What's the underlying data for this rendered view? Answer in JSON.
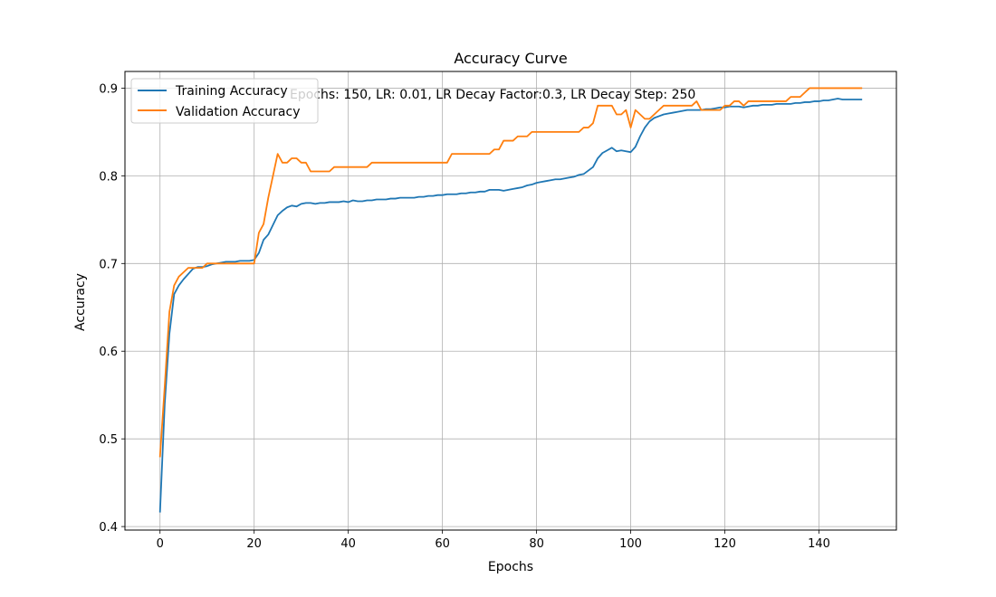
{
  "chart_data": {
    "type": "line",
    "title": "Accuracy Curve",
    "annotation": "Epochs: 150, LR: 0.01, LR Decay Factor:0.3, LR Decay Step: 250",
    "xlabel": "Epochs",
    "ylabel": "Accuracy",
    "xlim": [
      -7.45,
      156.45
    ],
    "ylim": [
      0.396,
      0.919
    ],
    "xticks": [
      0,
      20,
      40,
      60,
      80,
      100,
      120,
      140
    ],
    "xtick_labels": [
      "0",
      "20",
      "40",
      "60",
      "80",
      "100",
      "120",
      "140"
    ],
    "yticks": [
      0.4,
      0.5,
      0.6,
      0.7,
      0.8,
      0.9
    ],
    "ytick_labels": [
      "0.4",
      "0.5",
      "0.6",
      "0.7",
      "0.8",
      "0.9"
    ],
    "grid": true,
    "legend_position": "upper-left",
    "series": [
      {
        "name": "Training Accuracy",
        "color": "#1f77b4",
        "x": [
          0,
          1,
          2,
          3,
          4,
          5,
          6,
          7,
          8,
          9,
          10,
          11,
          12,
          13,
          14,
          15,
          16,
          17,
          18,
          19,
          20,
          21,
          22,
          23,
          24,
          25,
          26,
          27,
          28,
          29,
          30,
          31,
          32,
          33,
          34,
          35,
          36,
          37,
          38,
          39,
          40,
          41,
          42,
          43,
          44,
          45,
          46,
          47,
          48,
          49,
          50,
          51,
          52,
          53,
          54,
          55,
          56,
          57,
          58,
          59,
          60,
          61,
          62,
          63,
          64,
          65,
          66,
          67,
          68,
          69,
          70,
          71,
          72,
          73,
          74,
          75,
          76,
          77,
          78,
          79,
          80,
          81,
          82,
          83,
          84,
          85,
          86,
          87,
          88,
          89,
          90,
          91,
          92,
          93,
          94,
          95,
          96,
          97,
          98,
          99,
          100,
          101,
          102,
          103,
          104,
          105,
          106,
          107,
          108,
          109,
          110,
          111,
          112,
          113,
          114,
          115,
          116,
          117,
          118,
          119,
          120,
          121,
          122,
          123,
          124,
          125,
          126,
          127,
          128,
          129,
          130,
          131,
          132,
          133,
          134,
          135,
          136,
          137,
          138,
          139,
          140,
          141,
          142,
          143,
          144,
          145,
          146,
          147,
          148,
          149
        ],
        "y": [
          0.417,
          0.54,
          0.62,
          0.665,
          0.675,
          0.682,
          0.688,
          0.694,
          0.696,
          0.696,
          0.697,
          0.699,
          0.7,
          0.701,
          0.702,
          0.702,
          0.702,
          0.703,
          0.703,
          0.703,
          0.704,
          0.712,
          0.727,
          0.733,
          0.744,
          0.755,
          0.76,
          0.764,
          0.766,
          0.765,
          0.768,
          0.769,
          0.769,
          0.768,
          0.769,
          0.769,
          0.77,
          0.77,
          0.77,
          0.771,
          0.77,
          0.772,
          0.771,
          0.771,
          0.772,
          0.772,
          0.773,
          0.773,
          0.773,
          0.774,
          0.774,
          0.775,
          0.775,
          0.775,
          0.775,
          0.776,
          0.776,
          0.777,
          0.777,
          0.778,
          0.778,
          0.779,
          0.779,
          0.779,
          0.78,
          0.78,
          0.781,
          0.781,
          0.782,
          0.782,
          0.784,
          0.784,
          0.784,
          0.783,
          0.784,
          0.785,
          0.786,
          0.787,
          0.789,
          0.79,
          0.792,
          0.793,
          0.794,
          0.795,
          0.796,
          0.796,
          0.797,
          0.798,
          0.799,
          0.801,
          0.802,
          0.806,
          0.81,
          0.82,
          0.826,
          0.829,
          0.832,
          0.828,
          0.829,
          0.828,
          0.827,
          0.833,
          0.845,
          0.855,
          0.862,
          0.866,
          0.868,
          0.87,
          0.871,
          0.872,
          0.873,
          0.874,
          0.875,
          0.875,
          0.875,
          0.875,
          0.876,
          0.876,
          0.877,
          0.878,
          0.878,
          0.879,
          0.879,
          0.879,
          0.878,
          0.879,
          0.88,
          0.88,
          0.881,
          0.881,
          0.881,
          0.882,
          0.882,
          0.882,
          0.882,
          0.883,
          0.883,
          0.884,
          0.884,
          0.885,
          0.885,
          0.886,
          0.886,
          0.887,
          0.888,
          0.887,
          0.887,
          0.887,
          0.887,
          0.887
        ]
      },
      {
        "name": "Validation Accuracy",
        "color": "#ff7f0e",
        "x": [
          0,
          1,
          2,
          3,
          4,
          5,
          6,
          7,
          8,
          9,
          10,
          11,
          12,
          13,
          14,
          15,
          16,
          17,
          18,
          19,
          20,
          21,
          22,
          23,
          24,
          25,
          26,
          27,
          28,
          29,
          30,
          31,
          32,
          33,
          34,
          35,
          36,
          37,
          38,
          39,
          40,
          41,
          42,
          43,
          44,
          45,
          46,
          47,
          48,
          49,
          50,
          51,
          52,
          53,
          54,
          55,
          56,
          57,
          58,
          59,
          60,
          61,
          62,
          63,
          64,
          65,
          66,
          67,
          68,
          69,
          70,
          71,
          72,
          73,
          74,
          75,
          76,
          77,
          78,
          79,
          80,
          81,
          82,
          83,
          84,
          85,
          86,
          87,
          88,
          89,
          90,
          91,
          92,
          93,
          94,
          95,
          96,
          97,
          98,
          99,
          100,
          101,
          102,
          103,
          104,
          105,
          106,
          107,
          108,
          109,
          110,
          111,
          112,
          113,
          114,
          115,
          116,
          117,
          118,
          119,
          120,
          121,
          122,
          123,
          124,
          125,
          126,
          127,
          128,
          129,
          130,
          131,
          132,
          133,
          134,
          135,
          136,
          137,
          138,
          139,
          140,
          141,
          142,
          143,
          144,
          145,
          146,
          147,
          148,
          149
        ],
        "y": [
          0.48,
          0.56,
          0.645,
          0.675,
          0.685,
          0.69,
          0.695,
          0.695,
          0.695,
          0.695,
          0.7,
          0.7,
          0.7,
          0.7,
          0.7,
          0.7,
          0.7,
          0.7,
          0.7,
          0.7,
          0.7,
          0.735,
          0.745,
          0.775,
          0.8,
          0.825,
          0.815,
          0.815,
          0.82,
          0.82,
          0.815,
          0.815,
          0.805,
          0.805,
          0.805,
          0.805,
          0.805,
          0.81,
          0.81,
          0.81,
          0.81,
          0.81,
          0.81,
          0.81,
          0.81,
          0.815,
          0.815,
          0.815,
          0.815,
          0.815,
          0.815,
          0.815,
          0.815,
          0.815,
          0.815,
          0.815,
          0.815,
          0.815,
          0.815,
          0.815,
          0.815,
          0.815,
          0.825,
          0.825,
          0.825,
          0.825,
          0.825,
          0.825,
          0.825,
          0.825,
          0.825,
          0.83,
          0.83,
          0.84,
          0.84,
          0.84,
          0.845,
          0.845,
          0.845,
          0.85,
          0.85,
          0.85,
          0.85,
          0.85,
          0.85,
          0.85,
          0.85,
          0.85,
          0.85,
          0.85,
          0.855,
          0.855,
          0.86,
          0.88,
          0.88,
          0.88,
          0.88,
          0.87,
          0.87,
          0.875,
          0.855,
          0.875,
          0.87,
          0.865,
          0.865,
          0.87,
          0.875,
          0.88,
          0.88,
          0.88,
          0.88,
          0.88,
          0.88,
          0.88,
          0.885,
          0.875,
          0.875,
          0.875,
          0.875,
          0.875,
          0.88,
          0.88,
          0.885,
          0.885,
          0.88,
          0.885,
          0.885,
          0.885,
          0.885,
          0.885,
          0.885,
          0.885,
          0.885,
          0.885,
          0.89,
          0.89,
          0.89,
          0.895,
          0.9,
          0.9,
          0.9,
          0.9,
          0.9,
          0.9,
          0.9,
          0.9,
          0.9,
          0.9,
          0.9,
          0.9
        ]
      }
    ]
  }
}
